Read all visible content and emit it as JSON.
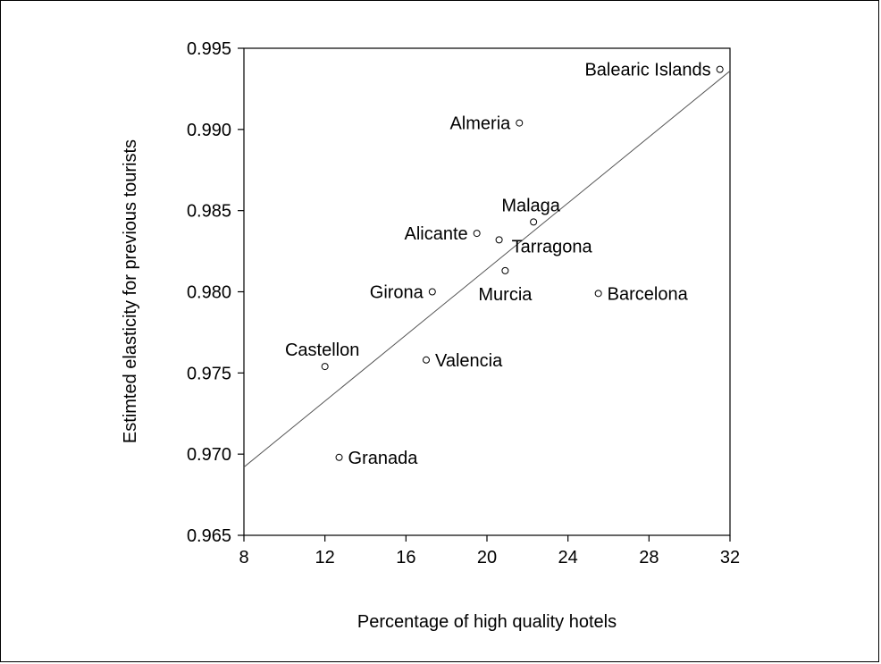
{
  "chart_data": {
    "type": "scatter",
    "xlabel": "Percentage of high quality hotels",
    "ylabel": "Estimted elasticity for previous tourists",
    "xlim": [
      8,
      32
    ],
    "ylim": [
      0.965,
      0.995
    ],
    "x_ticks": [
      8,
      12,
      16,
      20,
      24,
      28,
      32
    ],
    "x_tick_labels": [
      "8",
      "12",
      "16",
      "20",
      "24",
      "28",
      "32"
    ],
    "y_ticks": [
      0.965,
      0.97,
      0.975,
      0.98,
      0.985,
      0.99,
      0.995
    ],
    "y_tick_labels": [
      "0.965",
      "0.970",
      "0.975",
      "0.980",
      "0.985",
      "0.990",
      "0.995"
    ],
    "grid": false,
    "points": [
      {
        "label": "Balearic Islands",
        "x": 31.5,
        "y": 0.9937,
        "anchor": "left"
      },
      {
        "label": "Almeria",
        "x": 21.6,
        "y": 0.9904,
        "anchor": "left"
      },
      {
        "label": "Malaga",
        "x": 22.3,
        "y": 0.9843,
        "anchor": "above"
      },
      {
        "label": "Alicante",
        "x": 19.5,
        "y": 0.9836,
        "anchor": "left"
      },
      {
        "label": "Tarragona",
        "x": 20.6,
        "y": 0.9832,
        "anchor": "below-right"
      },
      {
        "label": "Murcia",
        "x": 20.9,
        "y": 0.9813,
        "anchor": "below"
      },
      {
        "label": "Girona",
        "x": 17.3,
        "y": 0.98,
        "anchor": "left"
      },
      {
        "label": "Barcelona",
        "x": 25.5,
        "y": 0.9799,
        "anchor": "right"
      },
      {
        "label": "Castellon",
        "x": 12.0,
        "y": 0.9754,
        "anchor": "above"
      },
      {
        "label": "Valencia",
        "x": 17.0,
        "y": 0.9758,
        "anchor": "right"
      },
      {
        "label": "Granada",
        "x": 12.7,
        "y": 0.9698,
        "anchor": "right"
      }
    ],
    "fit_line": {
      "x": [
        8,
        32
      ],
      "y": [
        0.9692,
        0.9936
      ]
    }
  }
}
